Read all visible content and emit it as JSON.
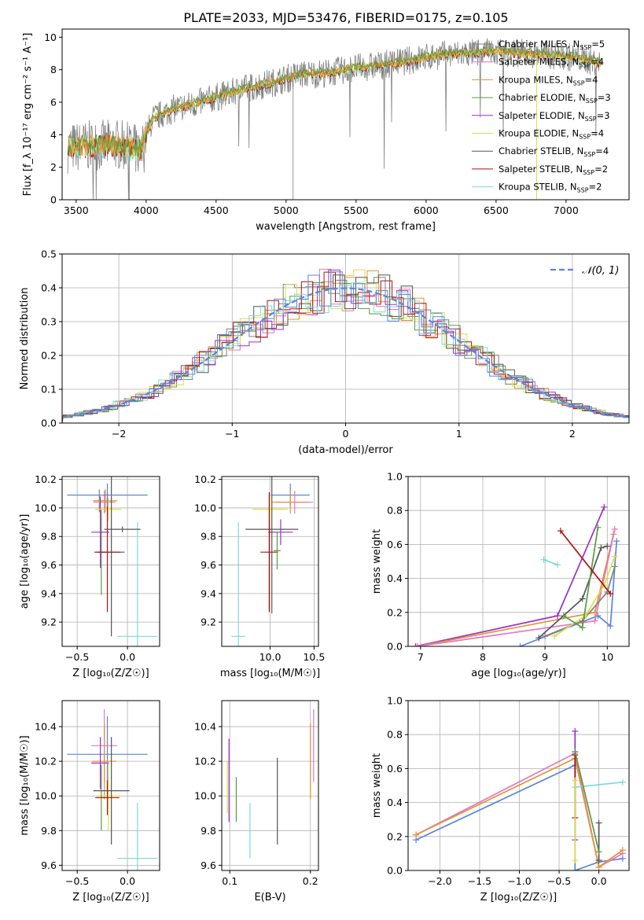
{
  "figure": {
    "title": "PLATE=2033, MJD=53476, FIBERID=0175, z=0.105"
  },
  "colors": {
    "Chabrier MILES": "#808080",
    "Salpeter MILES": "#e377c2",
    "Kroupa MILES": "#e69138",
    "Chabrier ELODIE": "#5a9a45",
    "Salpeter ELODIE": "#9b30c0",
    "Kroupa ELODIE": "#d8e04a",
    "Chabrier STELIB": "#555555",
    "Salpeter STELIB": "#b01010",
    "Kroupa STELIB": "#7fd8d8",
    "normal": "#5b86d6",
    "blue_extra": "#5b86d6"
  },
  "chart_data": [
    {
      "id": "spectrum",
      "type": "line",
      "title": "PLATE=2033, MJD=53476, FIBERID=0175, z=0.105",
      "xlabel": "wavelength [Angstrom, rest frame]",
      "ylabel": "Flux [f_λ 10⁻¹⁷ erg cm⁻² s⁻¹ A⁻¹]",
      "xlim": [
        3400,
        7450
      ],
      "ylim": [
        0,
        10.5
      ],
      "xticks": [
        3500,
        4000,
        4500,
        5000,
        5500,
        6000,
        6500,
        7000
      ],
      "yticks": [
        0,
        2,
        4,
        6,
        8,
        10
      ],
      "grid": false,
      "legend_position": "top-right",
      "legend": [
        {
          "label": "Chabrier MILES, N",
          "sub": "SSP",
          "tail": "=5"
        },
        {
          "label": "Salpeter MILES, N",
          "sub": "SSP",
          "tail": "=4"
        },
        {
          "label": "Kroupa MILES, N",
          "sub": "SSP",
          "tail": "=4"
        },
        {
          "label": "Chabrier ELODIE, N",
          "sub": "SSP",
          "tail": "=3"
        },
        {
          "label": "Salpeter ELODIE, N",
          "sub": "SSP",
          "tail": "=3"
        },
        {
          "label": "Kroupa ELODIE, N",
          "sub": "SSP",
          "tail": "=4"
        },
        {
          "label": "Chabrier STELIB, N",
          "sub": "SSP",
          "tail": "=4"
        },
        {
          "label": "Salpeter STELIB, N",
          "sub": "SSP",
          "tail": "=2"
        },
        {
          "label": "Kroupa STELIB, N",
          "sub": "SSP",
          "tail": "=2"
        }
      ],
      "continuum": {
        "x": [
          3450,
          3600,
          3800,
          3950,
          4050,
          4200,
          4350,
          4500,
          4700,
          4900,
          5100,
          5300,
          5500,
          5700,
          5900,
          6100,
          6300,
          6500,
          6700,
          6900,
          7100,
          7250
        ],
        "y": [
          3.2,
          3.3,
          3.4,
          3.0,
          5.0,
          5.6,
          5.9,
          6.3,
          6.8,
          7.2,
          7.7,
          7.8,
          8.1,
          8.3,
          8.6,
          8.9,
          9.0,
          9.1,
          9.0,
          8.9,
          8.7,
          8.4
        ]
      }
    },
    {
      "id": "residuals",
      "type": "bar",
      "xlabel": "(data-model)/error",
      "ylabel": "Normed distribution",
      "xlim": [
        -2.5,
        2.5
      ],
      "ylim": [
        0,
        0.5
      ],
      "xticks": [
        -2,
        -1,
        0,
        1,
        2
      ],
      "yticks": [
        0.0,
        0.1,
        0.2,
        0.3,
        0.4,
        0.5
      ],
      "grid": true,
      "legend_position": "top-right",
      "legend": [
        {
          "label": "𝒩(0, 1)"
        }
      ],
      "bin_width": 0.1
    },
    {
      "id": "age-z",
      "type": "scatter",
      "xlabel": "Z [log₁₀(Z/Z☉)]",
      "ylabel": "age  [log₁₀(age/yr)]",
      "xlim": [
        -0.65,
        0.32
      ],
      "ylim": [
        9.03,
        10.22
      ],
      "xticks": [
        -0.5,
        0.0
      ],
      "yticks": [
        9.2,
        9.4,
        9.6,
        9.8,
        10.0,
        10.2
      ],
      "grid": true,
      "points": [
        {
          "c": "Chabrier MILES",
          "x": -0.28,
          "y": 10.05,
          "xe": 0.05,
          "ye": 0.08
        },
        {
          "c": "Salpeter MILES",
          "x": -0.23,
          "y": 10.04,
          "xe": 0.11,
          "ye": 0.08
        },
        {
          "c": "Kroupa MILES",
          "x": -0.22,
          "y": 10.05,
          "xe": 0.12,
          "ye": 0.08
        },
        {
          "c": "Chabrier ELODIE",
          "x": -0.26,
          "y": 9.69,
          "xe": 0.05,
          "ye": 0.3
        },
        {
          "c": "Salpeter ELODIE",
          "x": -0.27,
          "y": 9.83,
          "xe": 0.09,
          "ye": 0.25
        },
        {
          "c": "Kroupa ELODIE",
          "x": -0.19,
          "y": 9.99,
          "xe": 0.13,
          "ye": 0.08
        },
        {
          "c": "Chabrier STELIB",
          "x": -0.16,
          "y": 9.69,
          "xe": 0.13,
          "ye": 0.59
        },
        {
          "c": "Salpeter STELIB",
          "x": -0.2,
          "y": 9.69,
          "xe": 0.13,
          "ye": 0.42
        },
        {
          "c": "Kroupa STELIB",
          "x": 0.1,
          "y": 9.1,
          "xe": 0.2,
          "ye": 0.8
        },
        {
          "c": "blue_extra",
          "x": -0.2,
          "y": 10.09,
          "xe": 0.4,
          "ye": 0.08
        },
        {
          "c": "Chabrier STELIB",
          "x": -0.05,
          "y": 9.85,
          "xe": 0.18,
          "ye": 0.02
        }
      ]
    },
    {
      "id": "age-mass",
      "type": "scatter",
      "xlabel": "mass [log₁₀(M/M☉)]",
      "ylabel": "",
      "xlim": [
        9.45,
        10.55
      ],
      "ylim": [
        9.03,
        10.22
      ],
      "xticks": [
        10.0,
        10.5
      ],
      "yticks": [
        9.2,
        9.4,
        9.6,
        9.8,
        10.0,
        10.2
      ],
      "grid": true,
      "points": [
        {
          "c": "blue_extra",
          "x": 10.23,
          "y": 10.09,
          "xe": 0.22,
          "ye": 0.08
        },
        {
          "c": "Salpeter MILES",
          "x": 10.28,
          "y": 10.04,
          "xe": 0.21,
          "ye": 0.08
        },
        {
          "c": "Kroupa MILES",
          "x": 10.23,
          "y": 10.04,
          "xe": 0.21,
          "ye": 0.08
        },
        {
          "c": "Kroupa ELODIE",
          "x": 10.0,
          "y": 9.99,
          "xe": 0.2,
          "ye": 0.08
        },
        {
          "c": "Salpeter ELODIE",
          "x": 10.12,
          "y": 9.83,
          "xe": 0.14,
          "ye": 0.09
        },
        {
          "c": "Chabrier STELIB",
          "x": 10.02,
          "y": 9.85,
          "xe": 0.3,
          "ye": 0.59
        },
        {
          "c": "Salpeter STELIB",
          "x": 9.99,
          "y": 9.69,
          "xe": 0.1,
          "ye": 0.42
        },
        {
          "c": "Chabrier ELODIE",
          "x": 10.08,
          "y": 9.7,
          "xe": 0.04,
          "ye": 0.13
        },
        {
          "c": "Kroupa STELIB",
          "x": 9.64,
          "y": 9.1,
          "xe": 0.08,
          "ye": 0.8
        }
      ]
    },
    {
      "id": "weight-age",
      "type": "line",
      "xlabel": "age  [log₁₀(age/yr)]",
      "ylabel": "mass weight",
      "xlim": [
        6.8,
        10.35
      ],
      "ylim": [
        0,
        1.0
      ],
      "xticks": [
        7,
        8,
        9,
        10
      ],
      "yticks": [
        0.0,
        0.2,
        0.4,
        0.6,
        0.8,
        1.0
      ],
      "grid": true,
      "series": [
        {
          "c": "blue_extra",
          "x": [
            8.6,
            9.85,
            10.05,
            10.15
          ],
          "y": [
            0.0,
            0.18,
            0.12,
            0.62
          ]
        },
        {
          "c": "Salpeter ELODIE",
          "x": [
            6.92,
            9.2,
            9.95
          ],
          "y": [
            0.0,
            0.18,
            0.82
          ]
        },
        {
          "c": "Kroupa MILES",
          "x": [
            6.95,
            9.8,
            10.1
          ],
          "y": [
            0.0,
            0.2,
            0.66
          ]
        },
        {
          "c": "Salpeter MILES",
          "x": [
            6.95,
            9.8,
            10.12
          ],
          "y": [
            0.0,
            0.15,
            0.69
          ]
        },
        {
          "c": "Chabrier MILES",
          "x": [
            9.0,
            9.6,
            10.0,
            10.12
          ],
          "y": [
            0.06,
            0.15,
            0.32,
            0.47
          ]
        },
        {
          "c": "Chabrier STELIB",
          "x": [
            8.9,
            9.6,
            9.9,
            10.0
          ],
          "y": [
            0.05,
            0.28,
            0.58,
            0.59
          ]
        },
        {
          "c": "Kroupa ELODIE",
          "x": [
            9.15,
            9.65,
            9.95,
            10.12
          ],
          "y": [
            0.06,
            0.18,
            0.36,
            0.53
          ]
        },
        {
          "c": "Chabrier ELODIE",
          "x": [
            9.3,
            9.6,
            9.85
          ],
          "y": [
            0.18,
            0.11,
            0.7
          ]
        },
        {
          "c": "Salpeter STELIB",
          "x": [
            9.25,
            10.05
          ],
          "y": [
            0.68,
            0.31
          ]
        },
        {
          "c": "Kroupa STELIB",
          "x": [
            8.98,
            9.2
          ],
          "y": [
            0.51,
            0.48
          ]
        }
      ]
    },
    {
      "id": "mass-z",
      "type": "scatter",
      "xlabel": "Z [log₁₀(Z/Z☉)]",
      "ylabel": "mass [log₁₀(M/M☉)]",
      "xlim": [
        -0.65,
        0.32
      ],
      "ylim": [
        9.57,
        10.55
      ],
      "xticks": [
        -0.5,
        0.0
      ],
      "yticks": [
        9.6,
        9.8,
        10.0,
        10.2,
        10.4
      ],
      "grid": true,
      "points": [
        {
          "c": "blue_extra",
          "x": -0.2,
          "y": 10.24,
          "xe": 0.4,
          "ye": 0.22
        },
        {
          "c": "Salpeter MILES",
          "x": -0.23,
          "y": 10.29,
          "xe": 0.13,
          "ye": 0.21
        },
        {
          "c": "Kroupa MILES",
          "x": -0.23,
          "y": 10.2,
          "xe": 0.12,
          "ye": 0.22
        },
        {
          "c": "Salpeter ELODIE",
          "x": -0.27,
          "y": 10.19,
          "xe": 0.09,
          "ye": 0.15
        },
        {
          "c": "Kroupa ELODIE",
          "x": -0.19,
          "y": 10.0,
          "xe": 0.12,
          "ye": 0.2
        },
        {
          "c": "Chabrier ELODIE",
          "x": -0.26,
          "y": 9.99,
          "xe": 0.04,
          "ye": 0.19
        },
        {
          "c": "Chabrier STELIB",
          "x": -0.16,
          "y": 10.03,
          "xe": 0.18,
          "ye": 0.31
        },
        {
          "c": "Salpeter STELIB",
          "x": -0.2,
          "y": 9.99,
          "xe": 0.12,
          "ye": 0.1
        },
        {
          "c": "Kroupa STELIB",
          "x": 0.1,
          "y": 9.64,
          "xe": 0.2,
          "ye": 0.32
        }
      ]
    },
    {
      "id": "mass-ebv",
      "type": "scatter",
      "xlabel": "E(B-V)",
      "ylabel": "",
      "xlim": [
        0.09,
        0.21
      ],
      "ylim": [
        9.57,
        10.55
      ],
      "xticks": [
        0.1,
        0.2
      ],
      "yticks": [
        9.6,
        9.8,
        10.0,
        10.2,
        10.4
      ],
      "grid": true,
      "points": [
        {
          "c": "Kroupa ELODIE",
          "x": 0.097,
          "y": 10.05,
          "xe": 0,
          "ye": 0.15
        },
        {
          "c": "Salpeter ELODIE",
          "x": 0.099,
          "y": 10.09,
          "xe": 0,
          "ye": 0.24
        },
        {
          "c": "Chabrier ELODIE",
          "x": 0.108,
          "y": 9.98,
          "xe": 0,
          "ye": 0.13
        },
        {
          "c": "Kroupa STELIB",
          "x": 0.125,
          "y": 9.8,
          "xe": 0,
          "ye": 0.16
        },
        {
          "c": "Chabrier STELIB",
          "x": 0.159,
          "y": 9.97,
          "xe": 0,
          "ye": 0.25
        },
        {
          "c": "Kroupa MILES",
          "x": 0.2,
          "y": 10.2,
          "xe": 0,
          "ye": 0.22
        },
        {
          "c": "Salpeter MILES",
          "x": 0.204,
          "y": 10.29,
          "xe": 0,
          "ye": 0.21
        }
      ]
    },
    {
      "id": "weight-z",
      "type": "line",
      "xlabel": "Z [log₁₀(Z/Z☉)]",
      "ylabel": "mass weight",
      "xlim": [
        -2.4,
        0.38
      ],
      "ylim": [
        0,
        1.0
      ],
      "xticks": [
        -2.0,
        -1.5,
        -1.0,
        -0.5,
        0.0
      ],
      "yticks": [
        0.0,
        0.2,
        0.4,
        0.6,
        0.8,
        1.0
      ],
      "grid": true,
      "series": [
        {
          "c": "blue_extra",
          "x": [
            -2.3,
            -0.3,
            -0.3,
            0.0,
            0.3
          ],
          "y": [
            0.18,
            0.62,
            0.0,
            0.05,
            0.07
          ]
        },
        {
          "c": "Salpeter MILES",
          "x": [
            -2.3,
            -0.3,
            0.0,
            0.3
          ],
          "y": [
            0.21,
            0.69,
            0.02,
            0.1
          ]
        },
        {
          "c": "Kroupa MILES",
          "x": [
            -2.3,
            -0.3,
            0.0,
            0.3
          ],
          "y": [
            0.21,
            0.66,
            0.02,
            0.12
          ]
        },
        {
          "c": "Salpeter ELODIE",
          "x": [
            -0.3,
            -0.3
          ],
          "y": [
            0.82,
            0.18
          ]
        },
        {
          "c": "Chabrier STELIB",
          "x": [
            0.0,
            0.0
          ],
          "y": [
            0.28,
            0.06
          ]
        },
        {
          "c": "Salpeter STELIB",
          "x": [
            -0.3,
            -0.3
          ],
          "y": [
            0.68,
            0.31
          ]
        },
        {
          "c": "Kroupa STELIB",
          "x": [
            -0.3,
            0.3
          ],
          "y": [
            0.49,
            0.52
          ]
        },
        {
          "c": "Kroupa ELODIE",
          "x": [
            -0.3,
            -0.3
          ],
          "y": [
            0.53,
            0.06
          ]
        },
        {
          "c": "Chabrier ELODIE",
          "x": [
            -0.3,
            0.0
          ],
          "y": [
            0.7,
            0.11
          ]
        }
      ]
    }
  ]
}
